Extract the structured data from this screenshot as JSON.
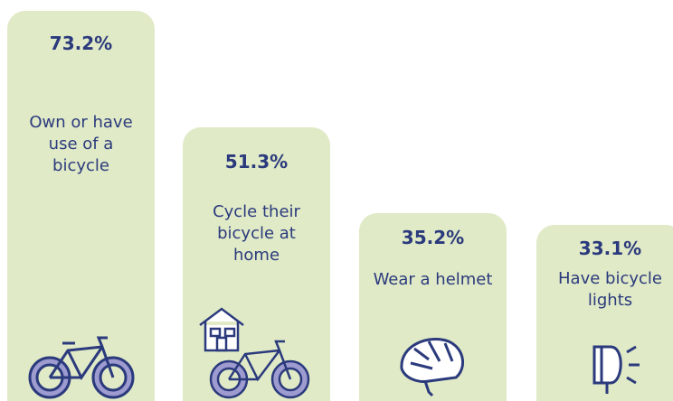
{
  "chart_data": {
    "type": "bar",
    "categories": [
      "Own or have use of a bicycle",
      "Cycle their bicycle at home",
      "Wear a helmet",
      "Have bicycle lights"
    ],
    "values": [
      73.2,
      51.3,
      35.2,
      33.1
    ],
    "value_labels": [
      "73.2%",
      "51.3%",
      "35.2%",
      "33.1%"
    ],
    "color": "#e0eac7"
  }
}
